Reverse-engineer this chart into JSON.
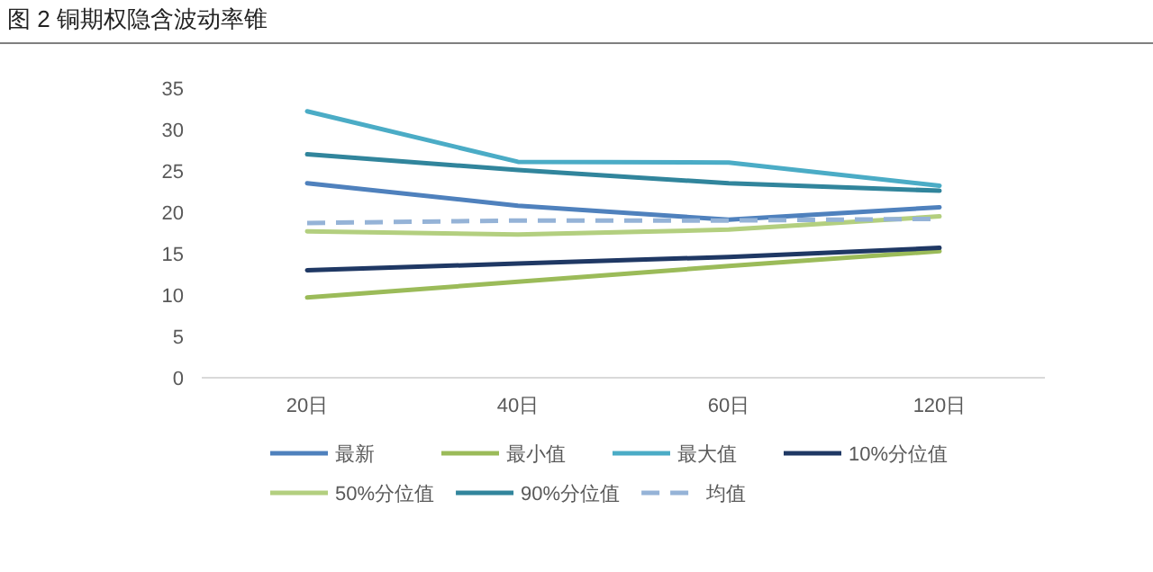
{
  "chart_data": {
    "type": "line",
    "title": "图 2 铜期权隐含波动率锥",
    "categories": [
      "20日",
      "40日",
      "60日",
      "120日"
    ],
    "ylim": [
      0,
      35
    ],
    "yticks": [
      0,
      5,
      10,
      15,
      20,
      25,
      30,
      35
    ],
    "grid": false,
    "legend": "bottom",
    "marker": "none",
    "series": [
      {
        "name": "最新",
        "color": "#4f81bd",
        "values": [
          23.5,
          20.8,
          19.1,
          20.6
        ]
      },
      {
        "name": "最小值",
        "color": "#9bbb59",
        "values": [
          9.7,
          11.6,
          13.5,
          15.3
        ]
      },
      {
        "name": "最大值",
        "color": "#4bacc6",
        "values": [
          32.2,
          26.1,
          26.0,
          23.2
        ]
      },
      {
        "name": "10%分位值",
        "color": "#1f3864",
        "values": [
          13.0,
          13.8,
          14.6,
          15.7
        ]
      },
      {
        "name": "50%分位值",
        "color": "#b3cf7f",
        "values": [
          17.7,
          17.3,
          17.9,
          19.5
        ]
      },
      {
        "name": "90%分位值",
        "color": "#31859c",
        "values": [
          27.0,
          25.1,
          23.5,
          22.6
        ]
      },
      {
        "name": "均值",
        "color": "#95b3d7",
        "values": [
          18.7,
          19.0,
          19.0,
          19.2
        ],
        "line_style": "dashed"
      }
    ]
  }
}
